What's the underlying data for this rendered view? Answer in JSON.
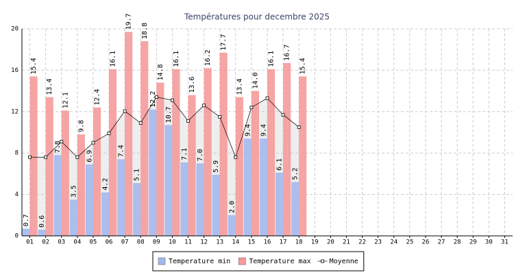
{
  "chart_data": {
    "type": "bar",
    "title": "Températures pour decembre 2025",
    "categories": [
      "01",
      "02",
      "03",
      "04",
      "05",
      "06",
      "07",
      "08",
      "09",
      "10",
      "11",
      "12",
      "13",
      "14",
      "15",
      "16",
      "17",
      "18",
      "19",
      "20",
      "21",
      "22",
      "23",
      "24",
      "25",
      "26",
      "27",
      "28",
      "29",
      "30",
      "31"
    ],
    "series": [
      {
        "name": "Temperature min",
        "color": "#a4b8ec",
        "kind": "bar",
        "values": [
          0.7,
          0.6,
          7.8,
          3.5,
          6.9,
          4.2,
          7.4,
          5.1,
          12.2,
          10.7,
          7.1,
          7.0,
          5.9,
          2.0,
          9.4,
          9.4,
          6.1,
          5.2,
          null,
          null,
          null,
          null,
          null,
          null,
          null,
          null,
          null,
          null,
          null,
          null,
          null
        ],
        "value_labels": [
          "0.7",
          "0.6",
          "7.8",
          "3.5",
          "6.9",
          "4.2",
          "7.4",
          "5.1",
          "12.2",
          "10.7",
          "7.1",
          "7.0",
          "5.9",
          "2.0",
          "9.4",
          "9.4",
          "6.1",
          "5.2",
          null,
          null,
          null,
          null,
          null,
          null,
          null,
          null,
          null,
          null,
          null,
          null,
          null
        ]
      },
      {
        "name": "Temperature max",
        "color": "#f59a9a",
        "kind": "bar",
        "values": [
          15.4,
          13.4,
          12.1,
          9.8,
          12.4,
          16.1,
          19.7,
          18.8,
          14.8,
          16.1,
          13.6,
          16.2,
          17.7,
          13.4,
          14.0,
          16.1,
          16.7,
          15.4,
          null,
          null,
          null,
          null,
          null,
          null,
          null,
          null,
          null,
          null,
          null,
          null,
          null
        ],
        "value_labels": [
          "15.4",
          "13.4",
          "12.1",
          "9.8",
          "12.4",
          "16.1",
          "19.7",
          "18.8",
          "14.8",
          "16.1",
          "13.6",
          "16.2",
          "17.7",
          "13.4",
          "14.0",
          "16.1",
          "16.7",
          "15.4",
          null,
          null,
          null,
          null,
          null,
          null,
          null,
          null,
          null,
          null,
          null,
          null,
          null
        ]
      },
      {
        "name": "Moyenne",
        "color": "#000000",
        "kind": "line",
        "values": [
          7.6,
          7.6,
          9.1,
          7.6,
          9.0,
          9.9,
          12.05,
          10.9,
          13.4,
          13.1,
          11.1,
          12.6,
          11.5,
          7.6,
          12.4,
          13.3,
          11.7,
          10.5,
          null,
          null,
          null,
          null,
          null,
          null,
          null,
          null,
          null,
          null,
          null,
          null,
          null
        ]
      }
    ],
    "ylim": [
      0,
      20
    ],
    "yticks": [
      0,
      4,
      8,
      12,
      16,
      20
    ],
    "grid": true,
    "legend": "bottom"
  }
}
